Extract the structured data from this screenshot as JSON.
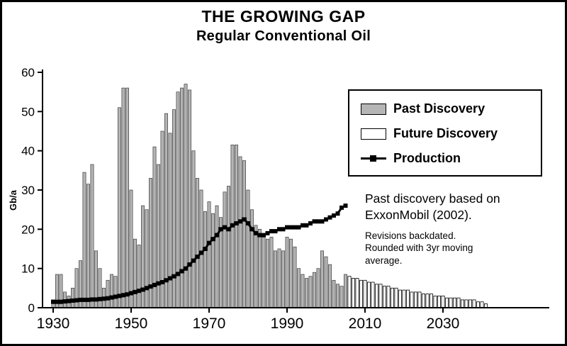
{
  "colors": {
    "past_bar": "#b5b5b5",
    "future_bar": "#ffffff",
    "production": "#000000",
    "axis": "#000000",
    "background": "#ffffff"
  },
  "annotation": {
    "large": "Past discovery based on ExxonMobil (2002).",
    "small": "Revisions backdated. Rounded with 3yr moving average."
  },
  "chart_data": {
    "type": "bar+line",
    "title": "THE GROWING GAP",
    "subtitle": "Regular Conventional Oil",
    "ylabel": "Gb/a",
    "ylim": [
      0,
      60
    ],
    "y_ticks": [
      0,
      10,
      20,
      30,
      40,
      50,
      60
    ],
    "x_ticks": [
      1930,
      1950,
      1970,
      1990,
      2010,
      2030
    ],
    "grid": false,
    "legend_position": "upper-right",
    "series": [
      {
        "name": "Past Discovery",
        "type": "bar",
        "color": "#b5b5b5",
        "start_year": 1930,
        "values": [
          2,
          8.5,
          8.5,
          4,
          3,
          5,
          10,
          12,
          34.5,
          31.5,
          36.5,
          14.5,
          10,
          5,
          7,
          8.5,
          8,
          51,
          56,
          56,
          30,
          17.5,
          16,
          26,
          25,
          33,
          41,
          36.5,
          45,
          49.5,
          44.5,
          50.5,
          55,
          56,
          57,
          55.5,
          40,
          33,
          30,
          24.5,
          27,
          24,
          26,
          23,
          29.5,
          31,
          41.5,
          41.5,
          38.5,
          37.5,
          30,
          25,
          21,
          20,
          18,
          17.5,
          18,
          14.5,
          15,
          14.5,
          18,
          17.5,
          15.5,
          10,
          8.5,
          7.5,
          8,
          9,
          10,
          14.5,
          13,
          11,
          7,
          6,
          5.5,
          8.5
        ]
      },
      {
        "name": "Future Discovery",
        "type": "bar",
        "color": "#ffffff",
        "start_year": 2006,
        "values": [
          8,
          7.5,
          7.5,
          7,
          7,
          6.5,
          6.5,
          6,
          6,
          5.5,
          5.5,
          5,
          5,
          4.5,
          4.5,
          4.5,
          4,
          4,
          4,
          3.5,
          3.5,
          3.5,
          3,
          3,
          3,
          2.5,
          2.5,
          2.5,
          2.5,
          2,
          2,
          2,
          2,
          1.5,
          1.5,
          1
        ]
      },
      {
        "name": "Production",
        "type": "line",
        "color": "#000000",
        "marker": "square",
        "start_year": 1930,
        "values": [
          1.5,
          1.5,
          1.5,
          1.6,
          1.7,
          1.8,
          1.9,
          2,
          2,
          2,
          2.1,
          2.1,
          2.2,
          2.3,
          2.4,
          2.6,
          2.8,
          3,
          3.2,
          3.4,
          3.7,
          4,
          4.3,
          4.6,
          5,
          5.4,
          5.8,
          6.2,
          6.5,
          7,
          7.5,
          8,
          8.6,
          9.3,
          10,
          11,
          12,
          13,
          14,
          15,
          16.5,
          17.5,
          18.5,
          20,
          20.5,
          20,
          21,
          21.5,
          22,
          22.5,
          21.5,
          20,
          19,
          18.5,
          18.5,
          19,
          19.5,
          19.5,
          20,
          20,
          20.5,
          20.5,
          20.5,
          20.5,
          21,
          21,
          21.5,
          22,
          22,
          22,
          22.5,
          23,
          23.5,
          24,
          25.5,
          26
        ]
      }
    ]
  }
}
